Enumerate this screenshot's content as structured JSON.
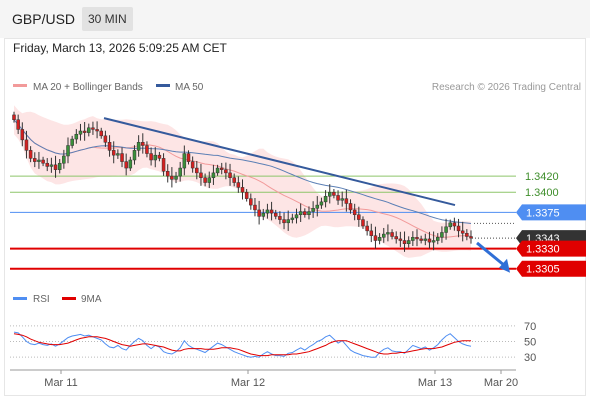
{
  "header": {
    "symbol": "GBP/USD",
    "timeframe": "30 MIN",
    "datetime": "Friday, March 13, 2026 5:09:25 AM CET"
  },
  "colors": {
    "bullish": "#3a8f3a",
    "bearish": "#d42020",
    "ma20": "#f29a9a",
    "bollinger_fill": "#fde2e2",
    "ma50": "#5b7fb5",
    "trendline": "#355a9c",
    "resistance": "#8dc56a",
    "pivot": "#4f8ef2",
    "support": "#e00000",
    "rsi": "#4f8ef2",
    "rsi_ma": "#e00000"
  },
  "chart_data": {
    "type": "candlestick",
    "title": "",
    "legend": [
      {
        "label": "MA 20 + Bollinger Bands",
        "color": "#f29a9a"
      },
      {
        "label": "MA 50",
        "color": "#355a9c"
      }
    ],
    "legend_position": "top-left",
    "credit": "Research © 2026 Trading Central",
    "x_labels": [
      "Mar 11",
      "Mar 12",
      "Mar 13",
      "Mar 20"
    ],
    "ylim": [
      1.3286,
      1.3517
    ],
    "grid": false,
    "levels": [
      {
        "label": "1.3420",
        "value": 1.342,
        "kind": "resistance"
      },
      {
        "label": "1.3400",
        "value": 1.34,
        "kind": "resistance"
      },
      {
        "label": "1.3375",
        "value": 1.3375,
        "kind": "pivot"
      },
      {
        "label": "1.3343",
        "value": 1.3343,
        "kind": "last_price"
      },
      {
        "label": "1.3330",
        "value": 1.333,
        "kind": "support"
      },
      {
        "label": "1.3305",
        "value": 1.3305,
        "kind": "support"
      }
    ],
    "trendline": {
      "from": [
        -2.3,
        1.3492
      ],
      "to": [
        4.75,
        1.3384
      ]
    },
    "forecast_arrow": {
      "from": [
        4.9,
        1.3337
      ],
      "to": [
        5.35,
        1.33
      ]
    },
    "candles_closes": [
      1.349,
      1.3478,
      1.3465,
      1.3452,
      1.3442,
      1.3438,
      1.344,
      1.3436,
      1.3432,
      1.3434,
      1.3428,
      1.3436,
      1.3445,
      1.3458,
      1.3466,
      1.3472,
      1.3476,
      1.3474,
      1.348,
      1.3478,
      1.3476,
      1.347,
      1.3462,
      1.3452,
      1.3446,
      1.3448,
      1.3438,
      1.343,
      1.344,
      1.3452,
      1.3462,
      1.3458,
      1.3448,
      1.344,
      1.3446,
      1.3442,
      1.3426,
      1.342,
      1.3416,
      1.342,
      1.343,
      1.3448,
      1.3438,
      1.343,
      1.3424,
      1.3418,
      1.3412,
      1.3418,
      1.3424,
      1.343,
      1.3428,
      1.3424,
      1.3418,
      1.3412,
      1.3406,
      1.34,
      1.3392,
      1.3384,
      1.3378,
      1.337,
      1.3374,
      1.3378,
      1.3374,
      1.337,
      1.3366,
      1.3362,
      1.3366,
      1.3368,
      1.3372,
      1.3376,
      1.3372,
      1.3376,
      1.338,
      1.3384,
      1.3388,
      1.3395,
      1.34,
      1.3396,
      1.339,
      1.3392,
      1.3386,
      1.3378,
      1.3372,
      1.3366,
      1.3358,
      1.3352,
      1.3346,
      1.334,
      1.3344,
      1.3348,
      1.335,
      1.3345,
      1.3342,
      1.334,
      1.3336,
      1.334,
      1.3344,
      1.3342,
      1.334,
      1.3342,
      1.3338,
      1.334,
      1.3344,
      1.335,
      1.3357,
      1.3362,
      1.3358,
      1.3352,
      1.3349,
      1.3345,
      1.3343
    ],
    "rsi_panel": {
      "legend": [
        {
          "label": "RSI",
          "color": "#4f8ef2"
        },
        {
          "label": "9MA",
          "color": "#e00000"
        }
      ],
      "y_ticks": [
        70,
        50,
        30
      ],
      "ylim": [
        20,
        80
      ],
      "rsi": [
        62,
        61,
        56,
        50,
        47,
        46,
        48,
        46,
        45,
        47,
        44,
        47,
        51,
        55,
        57,
        58,
        59,
        57,
        58,
        56,
        54,
        52,
        47,
        43,
        42,
        45,
        41,
        39,
        45,
        50,
        54,
        51,
        45,
        41,
        45,
        43,
        37,
        35,
        34,
        37,
        42,
        51,
        45,
        42,
        40,
        38,
        36,
        40,
        44,
        48,
        46,
        43,
        40,
        37,
        35,
        33,
        31,
        30,
        31,
        30,
        34,
        37,
        34,
        32,
        32,
        31,
        35,
        36,
        39,
        42,
        39,
        43,
        46,
        50,
        52,
        56,
        58,
        53,
        48,
        51,
        45,
        39,
        36,
        34,
        32,
        31,
        30,
        30,
        36,
        40,
        42,
        38,
        37,
        37,
        35,
        40,
        45,
        43,
        41,
        43,
        39,
        42,
        46,
        52,
        57,
        60,
        55,
        50,
        47,
        45,
        44
      ],
      "rsi_ma": [
        60,
        59,
        58,
        56,
        53,
        51,
        49,
        48,
        47,
        46,
        46,
        46,
        47,
        48,
        50,
        52,
        54,
        55,
        56,
        56,
        56,
        55,
        54,
        52,
        50,
        48,
        46,
        45,
        44,
        45,
        46,
        47,
        47,
        46,
        45,
        44,
        43,
        41,
        39,
        38,
        38,
        40,
        41,
        41,
        41,
        41,
        40,
        40,
        40,
        41,
        42,
        42,
        42,
        41,
        40,
        38,
        36,
        34,
        33,
        32,
        32,
        32,
        33,
        33,
        33,
        33,
        33,
        34,
        34,
        35,
        36,
        37,
        39,
        41,
        43,
        45,
        48,
        50,
        51,
        51,
        51,
        49,
        47,
        45,
        43,
        41,
        39,
        37,
        35,
        34,
        34,
        35,
        35,
        36,
        36,
        37,
        38,
        39,
        40,
        41,
        41,
        41,
        42,
        43,
        45,
        47,
        49,
        50,
        51,
        51,
        51
      ]
    }
  }
}
